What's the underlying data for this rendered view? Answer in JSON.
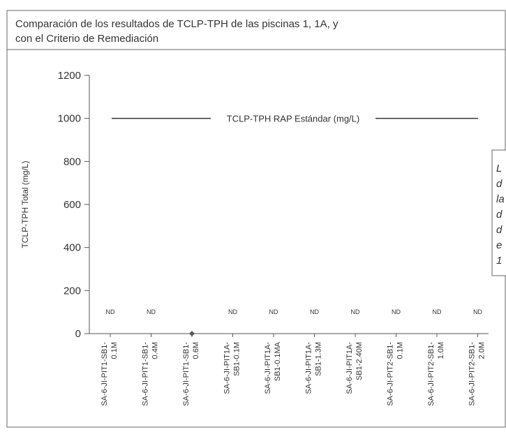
{
  "chart_data": {
    "type": "scatter",
    "title_lines": [
      "Comparación de los resultados de TCLP-TPH de las piscinas 1, 1A, y",
      "con el Criterio de Remediación"
    ],
    "y_label": "TCLP-TPH Total (mg/L)",
    "categories": [
      [
        "SA-6-JI-PIT1-SB1-",
        "0.1M"
      ],
      [
        "SA-6-JI-PIT1-SB1-",
        "0.4M"
      ],
      [
        "SA-6-JI-PIT1-SB1-",
        "0.6M"
      ],
      [
        "SA-6-JI-PIT1A-",
        "SB1-0.1M"
      ],
      [
        "SA-6-JI-PIT1A-",
        "SB1-0.1MA"
      ],
      [
        "SA-6-JI-PIT1A-",
        "SB1-1.3M"
      ],
      [
        "SA-6-JI-PIT1A-",
        "SB1-2.40M"
      ],
      [
        "SA-6-JI-PIT2-SB1-",
        "0.1M"
      ],
      [
        "SA-6-JI-PIT2-SB1-",
        "1.0M"
      ],
      [
        "SA-6-JI-PIT2-SB1-",
        "2.0M"
      ]
    ],
    "values": [
      null,
      null,
      0,
      null,
      null,
      null,
      null,
      null,
      null,
      null
    ],
    "value_labels": [
      "ND",
      "ND",
      null,
      "ND",
      "ND",
      "ND",
      "ND",
      "ND",
      "ND",
      "ND"
    ],
    "color": "#555566",
    "ylim": [
      0,
      1200
    ],
    "yticks": [
      0,
      200,
      400,
      600,
      800,
      1000,
      1200
    ],
    "reference_line": {
      "label": "TCLP-TPH RAP Estándar (mg/L)",
      "value": 1000,
      "color": "#333344"
    },
    "annotation_lines": [
      "L",
      "d",
      "la",
      "d",
      "d",
      "e",
      "1"
    ]
  }
}
